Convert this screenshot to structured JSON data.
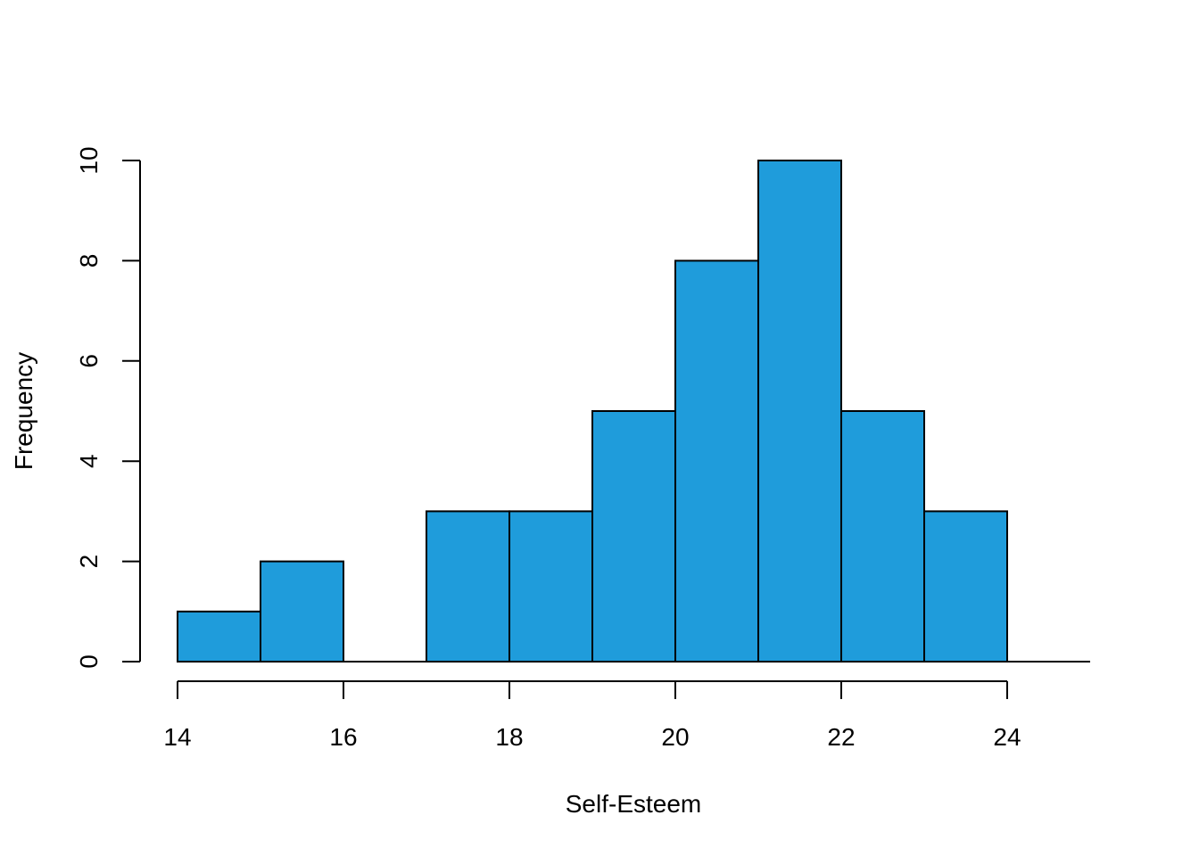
{
  "chart_data": {
    "type": "bar",
    "subtype": "histogram",
    "xlabel": "Self-Esteem",
    "ylabel": "Frequency",
    "bins": [
      {
        "start": 14,
        "end": 15,
        "count": 1
      },
      {
        "start": 15,
        "end": 16,
        "count": 2
      },
      {
        "start": 16,
        "end": 17,
        "count": 0
      },
      {
        "start": 17,
        "end": 18,
        "count": 3
      },
      {
        "start": 18,
        "end": 19,
        "count": 3
      },
      {
        "start": 19,
        "end": 20,
        "count": 5
      },
      {
        "start": 20,
        "end": 21,
        "count": 8
      },
      {
        "start": 21,
        "end": 22,
        "count": 10
      },
      {
        "start": 22,
        "end": 23,
        "count": 5
      },
      {
        "start": 23,
        "end": 24,
        "count": 3
      }
    ],
    "xlim": [
      14,
      25
    ],
    "ylim": [
      0,
      10
    ],
    "x_ticks": [
      14,
      16,
      18,
      20,
      22,
      24
    ],
    "y_ticks": [
      0,
      2,
      4,
      6,
      8,
      10
    ],
    "bar_color": "#1f9cdb",
    "grid": false,
    "legend": "none"
  }
}
